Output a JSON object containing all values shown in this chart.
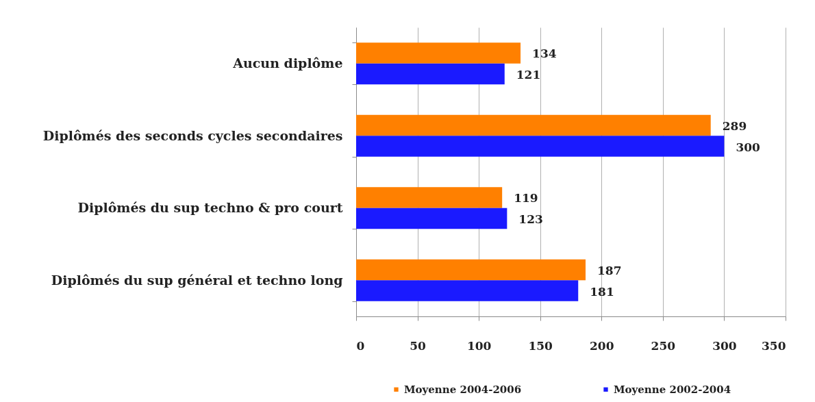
{
  "chart_data": {
    "type": "bar",
    "orientation": "horizontal",
    "categories": [
      "Aucun diplôme",
      "Diplômés des seconds cycles secondaires",
      "Diplômés du sup techno & pro court",
      "Diplômés du sup général et techno long"
    ],
    "series": [
      {
        "name": "Moyenne 2004-2006",
        "color": "#ff8000",
        "values": [
          134,
          289,
          119,
          187
        ]
      },
      {
        "name": "Moyenne 2002-2004",
        "color": "#1a1aff",
        "values": [
          121,
          300,
          123,
          181
        ]
      }
    ],
    "xlim": [
      0,
      350
    ],
    "xticks": [
      0,
      50,
      100,
      150,
      200,
      250,
      300,
      350
    ],
    "grid": "x",
    "legend": "bottom",
    "data_labels": true
  }
}
